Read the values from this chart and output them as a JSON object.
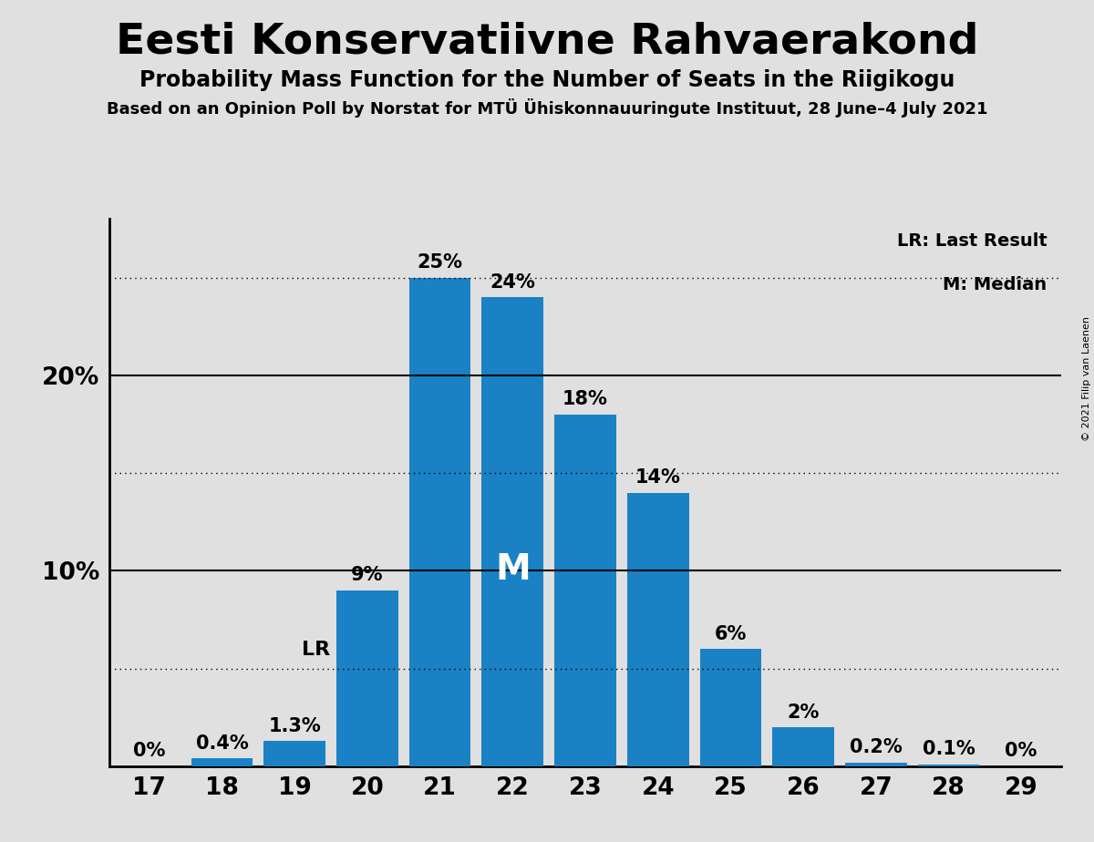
{
  "title": "Eesti Konservatiivne Rahvaerakond",
  "subtitle": "Probability Mass Function for the Number of Seats in the Riigikogu",
  "source_line": "Based on an Opinion Poll by Norstat for MTÜ Ühiskonnauuringute Instituut, 28 June–4 July 2021",
  "copyright": "© 2021 Filip van Laenen",
  "categories": [
    17,
    18,
    19,
    20,
    21,
    22,
    23,
    24,
    25,
    26,
    27,
    28,
    29
  ],
  "values": [
    0.0,
    0.4,
    1.3,
    9.0,
    25.0,
    24.0,
    18.0,
    14.0,
    6.0,
    2.0,
    0.2,
    0.1,
    0.0
  ],
  "bar_color": "#1a82c4",
  "bar_labels": [
    "0%",
    "0.4%",
    "1.3%",
    "9%",
    "25%",
    "24%",
    "18%",
    "14%",
    "6%",
    "2%",
    "0.2%",
    "0.1%",
    "0%"
  ],
  "median_seat": 22,
  "lr_seat": 19,
  "lr_label": "LR",
  "median_label": "M",
  "legend_lr": "LR: Last Result",
  "legend_m": "M: Median",
  "dotted_lines": [
    5,
    15,
    25
  ],
  "solid_lines": [
    10,
    20
  ],
  "ylim": [
    0,
    28
  ],
  "bg_color": "#e0e0e0",
  "plot_bg_color": "#e0e0e0",
  "title_fontsize": 34,
  "subtitle_fontsize": 17,
  "source_fontsize": 13,
  "bar_label_fontsize": 15,
  "axis_tick_fontsize": 19
}
